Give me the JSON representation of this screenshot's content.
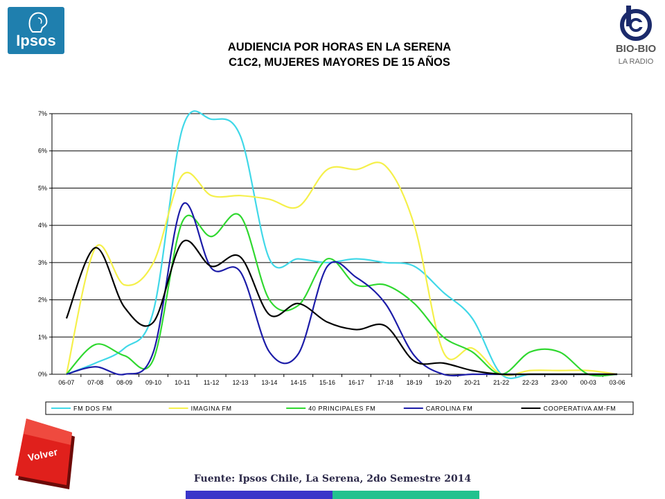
{
  "brand": {
    "left_logo_text": "Ipsos",
    "right_logo_line1": "BIO-BIO",
    "right_logo_line2": "LA RADIO"
  },
  "title": {
    "line1": "AUDIENCIA POR HORAS EN LA SERENA",
    "line2": "C1C2, MUJERES MAYORES DE 15 AÑOS"
  },
  "source": "Fuente: Ipsos Chile, La Serena, 2do Semestre 2014",
  "volver_button": {
    "label": "Volver",
    "color": "#e0201c"
  },
  "chart_data": {
    "type": "line",
    "title": "AUDIENCIA POR HORAS EN LA SERENA C1C2, MUJERES MAYORES DE 15 AÑOS",
    "xlabel": "",
    "ylabel": "",
    "ylim": [
      0,
      7
    ],
    "y_ticks": [
      "0%",
      "1%",
      "2%",
      "3%",
      "4%",
      "5%",
      "6%",
      "7%"
    ],
    "grid": true,
    "legend_position": "bottom",
    "categories": [
      "06-07",
      "07-08",
      "08-09",
      "09-10",
      "10-11",
      "11-12",
      "12-13",
      "13-14",
      "14-15",
      "15-16",
      "16-17",
      "17-18",
      "18-19",
      "19-20",
      "20-21",
      "21-22",
      "22-23",
      "23-00",
      "00-03",
      "03-06"
    ],
    "series": [
      {
        "name": "FM DOS FM",
        "color": "#40d8e8",
        "values": [
          0.0,
          0.3,
          0.7,
          1.7,
          6.6,
          6.85,
          6.4,
          3.1,
          3.1,
          3.0,
          3.1,
          3.0,
          2.9,
          2.2,
          1.5,
          0.0,
          0.0,
          0.0,
          0.0,
          0.0
        ]
      },
      {
        "name": "IMAGINA FM",
        "color": "#f5f04a",
        "values": [
          0.0,
          3.4,
          2.4,
          3.0,
          5.35,
          4.8,
          4.8,
          4.7,
          4.5,
          5.5,
          5.5,
          5.6,
          4.0,
          0.6,
          0.7,
          0.0,
          0.1,
          0.1,
          0.1,
          0.0
        ]
      },
      {
        "name": "40 PRINCIPALES FM",
        "color": "#30d830",
        "values": [
          0.0,
          0.8,
          0.5,
          0.4,
          4.1,
          3.7,
          4.25,
          2.0,
          1.85,
          3.1,
          2.4,
          2.4,
          1.9,
          1.0,
          0.6,
          0.0,
          0.6,
          0.6,
          0.0,
          0.0
        ]
      },
      {
        "name": "CAROLINA FM",
        "color": "#1c1ca8",
        "values": [
          0.0,
          0.2,
          0.0,
          0.6,
          4.55,
          2.85,
          2.75,
          0.6,
          0.55,
          2.9,
          2.6,
          1.9,
          0.5,
          0.0,
          0.0,
          0.0,
          0.0,
          0.0,
          0.0,
          0.0
        ]
      },
      {
        "name": "COOPERATIVA AM-FM",
        "color": "#000000",
        "values": [
          1.5,
          3.4,
          1.8,
          1.4,
          3.55,
          2.9,
          3.15,
          1.6,
          1.9,
          1.4,
          1.2,
          1.3,
          0.35,
          0.3,
          0.1,
          0.0,
          0.0,
          0.0,
          0.0,
          0.0
        ]
      }
    ]
  }
}
